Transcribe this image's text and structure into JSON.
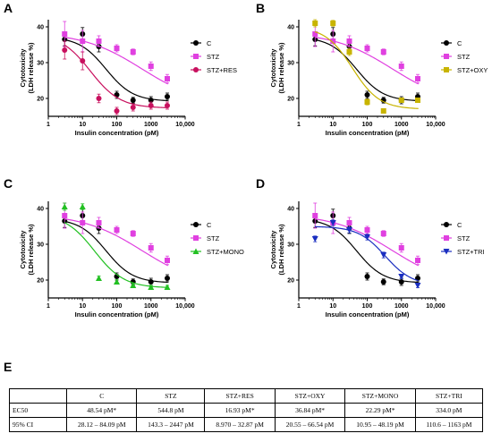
{
  "panels": [
    {
      "letter": "A",
      "chart_data": {
        "type": "line",
        "xscale": "log",
        "xlim": [
          1,
          10000
        ],
        "ylim": [
          15,
          42
        ],
        "xlabel": "Insulin concentration (pM)",
        "ylabel": "Cytotoxicity\n(LDH release %)",
        "xticks": [
          {
            "v": 1,
            "label": "1"
          },
          {
            "v": 10,
            "label": "10"
          },
          {
            "v": 100,
            "label": "100"
          },
          {
            "v": 1000,
            "label": "1000"
          },
          {
            "v": 10000,
            "label": "10,000"
          }
        ],
        "yticks": [
          20,
          30,
          40
        ],
        "legend_position": "right",
        "series": [
          {
            "name": "C",
            "color": "#000000",
            "marker": "circle",
            "x": [
              3,
              10,
              30,
              100,
              300,
              1000,
              3000
            ],
            "y": [
              36.5,
              38,
              34.5,
              21,
              19.5,
              19.5,
              20.5
            ],
            "err": [
              1.8,
              1.8,
              1.5,
              1.0,
              0.8,
              1.0,
              1.0
            ],
            "fit": {
              "bottom": 19.2,
              "top": 37.2,
              "ec50": 48.54,
              "hill": 1.1
            }
          },
          {
            "name": "STZ",
            "color": "#e040e0",
            "marker": "square",
            "x": [
              3,
              10,
              30,
              100,
              300,
              1000,
              3000
            ],
            "y": [
              38,
              36,
              36,
              34,
              33,
              29,
              25.5
            ],
            "err": [
              3.5,
              3,
              1.5,
              1.0,
              0.8,
              1.2,
              1.2
            ],
            "fit": {
              "bottom": 18,
              "top": 38.5,
              "ec50": 544.8,
              "hill": 0.5
            }
          },
          {
            "name": "STZ+RES",
            "color": "#c8105e",
            "marker": "circle",
            "x": [
              3,
              10,
              30,
              100,
              300,
              1000,
              3000
            ],
            "y": [
              33.5,
              30.5,
              20,
              16.5,
              17.5,
              18,
              18
            ],
            "err": [
              2.5,
              2.5,
              1.2,
              1.0,
              1.0,
              1.0,
              1.0
            ],
            "fit": {
              "bottom": 17.3,
              "top": 38,
              "ec50": 16.93,
              "hill": 1.0
            }
          }
        ]
      }
    },
    {
      "letter": "B",
      "chart_data": {
        "type": "line",
        "xscale": "log",
        "xlim": [
          1,
          10000
        ],
        "ylim": [
          15,
          42
        ],
        "xlabel": "Insulin concentration (pM)",
        "ylabel": "Cytotoxicity\n(LDH release %)",
        "xticks": [
          {
            "v": 1,
            "label": "1"
          },
          {
            "v": 10,
            "label": "10"
          },
          {
            "v": 100,
            "label": "100"
          },
          {
            "v": 1000,
            "label": "1000"
          },
          {
            "v": 10000,
            "label": "10,000"
          }
        ],
        "yticks": [
          20,
          30,
          40
        ],
        "legend_position": "right",
        "series": [
          {
            "name": "C",
            "color": "#000000",
            "marker": "circle",
            "x": [
              3,
              10,
              30,
              100,
              300,
              1000,
              3000
            ],
            "y": [
              36.5,
              38,
              34.5,
              21,
              19.5,
              19.5,
              20.5
            ],
            "err": [
              1.8,
              1.8,
              1.5,
              1.0,
              0.8,
              1.0,
              1.0
            ],
            "fit": {
              "bottom": 19.2,
              "top": 37.2,
              "ec50": 48.54,
              "hill": 1.1
            }
          },
          {
            "name": "STZ",
            "color": "#e040e0",
            "marker": "square",
            "x": [
              3,
              10,
              30,
              100,
              300,
              1000,
              3000
            ],
            "y": [
              38,
              36,
              36,
              34,
              33,
              29,
              25.5
            ],
            "err": [
              3.5,
              3,
              1.5,
              1.0,
              0.8,
              1.2,
              1.2
            ],
            "fit": {
              "bottom": 18,
              "top": 38.5,
              "ec50": 544.8,
              "hill": 0.5
            }
          },
          {
            "name": "STZ+OXY",
            "color": "#c8b400",
            "marker": "square",
            "x": [
              3,
              10,
              30,
              100,
              300,
              1000,
              3000
            ],
            "y": [
              41,
              41,
              33,
              19,
              16.5,
              19.5,
              19.5
            ],
            "err": [
              1.0,
              0.8,
              1.0,
              0.8,
              0.6,
              0.6,
              0.6
            ],
            "fit": {
              "bottom": 17,
              "top": 40,
              "ec50": 36.84,
              "hill": 1.1
            }
          }
        ]
      }
    },
    {
      "letter": "C",
      "chart_data": {
        "type": "line",
        "xscale": "log",
        "xlim": [
          1,
          10000
        ],
        "ylim": [
          15,
          42
        ],
        "xlabel": "Insulin concentration (pM)",
        "ylabel": "Cytotoxicity\n(LDH release %)",
        "xticks": [
          {
            "v": 1,
            "label": "1"
          },
          {
            "v": 10,
            "label": "10"
          },
          {
            "v": 100,
            "label": "100"
          },
          {
            "v": 1000,
            "label": "1000"
          },
          {
            "v": 10000,
            "label": "10,000"
          }
        ],
        "yticks": [
          20,
          30,
          40
        ],
        "legend_position": "right",
        "series": [
          {
            "name": "C",
            "color": "#000000",
            "marker": "circle",
            "x": [
              3,
              10,
              30,
              100,
              300,
              1000,
              3000
            ],
            "y": [
              36.5,
              38,
              34.5,
              21,
              19.5,
              19.5,
              20.5
            ],
            "err": [
              1.8,
              1.8,
              1.5,
              1.0,
              0.8,
              1.0,
              1.0
            ],
            "fit": {
              "bottom": 19.2,
              "top": 37.2,
              "ec50": 48.54,
              "hill": 1.1
            }
          },
          {
            "name": "STZ",
            "color": "#e040e0",
            "marker": "square",
            "x": [
              3,
              10,
              30,
              100,
              300,
              1000,
              3000
            ],
            "y": [
              38,
              36,
              36,
              34,
              33,
              29,
              25.5
            ],
            "err": [
              3.5,
              3,
              1.5,
              1.0,
              0.8,
              1.2,
              1.2
            ],
            "fit": {
              "bottom": 18,
              "top": 38.5,
              "ec50": 544.8,
              "hill": 0.5
            }
          },
          {
            "name": "STZ+MONO",
            "color": "#22c022",
            "marker": "triangle",
            "x": [
              3,
              10,
              30,
              100,
              300,
              1000,
              3000
            ],
            "y": [
              40.5,
              40.5,
              20.5,
              19.5,
              18.5,
              18,
              18
            ],
            "err": [
              1.0,
              0.8,
              0.6,
              0.6,
              0.5,
              0.5,
              0.5
            ],
            "fit": {
              "bottom": 17.8,
              "top": 38.5,
              "ec50": 22.29,
              "hill": 1.0
            }
          }
        ]
      }
    },
    {
      "letter": "D",
      "chart_data": {
        "type": "line",
        "xscale": "log",
        "xlim": [
          1,
          10000
        ],
        "ylim": [
          15,
          42
        ],
        "xlabel": "Insulin concentration (pM)",
        "ylabel": "Cytotoxicity\n(LDH release %)",
        "xticks": [
          {
            "v": 1,
            "label": "1"
          },
          {
            "v": 10,
            "label": "10"
          },
          {
            "v": 100,
            "label": "100"
          },
          {
            "v": 1000,
            "label": "1000"
          },
          {
            "v": 10000,
            "label": "10,000"
          }
        ],
        "yticks": [
          20,
          30,
          40
        ],
        "legend_position": "right",
        "series": [
          {
            "name": "C",
            "color": "#000000",
            "marker": "circle",
            "x": [
              3,
              10,
              30,
              100,
              300,
              1000,
              3000
            ],
            "y": [
              36.5,
              38,
              34.5,
              21,
              19.5,
              19.5,
              20.5
            ],
            "err": [
              1.8,
              1.8,
              1.5,
              1.0,
              0.8,
              1.0,
              1.0
            ],
            "fit": {
              "bottom": 19.2,
              "top": 37.2,
              "ec50": 48.54,
              "hill": 1.1
            }
          },
          {
            "name": "STZ",
            "color": "#e040e0",
            "marker": "square",
            "x": [
              3,
              10,
              30,
              100,
              300,
              1000,
              3000
            ],
            "y": [
              38,
              36,
              36,
              34,
              33,
              29,
              25.5
            ],
            "err": [
              3.5,
              3,
              1.5,
              1.0,
              0.8,
              1.2,
              1.2
            ],
            "fit": {
              "bottom": 18,
              "top": 38.5,
              "ec50": 544.8,
              "hill": 0.5
            }
          },
          {
            "name": "STZ+TRI",
            "color": "#1a2ec0",
            "marker": "triangle-down",
            "x": [
              3,
              10,
              30,
              100,
              300,
              1000,
              3000
            ],
            "y": [
              31.5,
              36,
              34,
              32,
              27,
              21,
              18.5
            ],
            "err": [
              0.8,
              0.8,
              0.8,
              0.8,
              0.8,
              0.6,
              0.6
            ],
            "fit": {
              "bottom": 18.5,
              "top": 35,
              "ec50": 334.0,
              "hill": 1.1
            }
          }
        ]
      }
    }
  ],
  "table": {
    "letter": "E",
    "headers": [
      "",
      "C",
      "STZ",
      "STZ+RES",
      "STZ+OXY",
      "STZ+MONO",
      "STZ+TRI"
    ],
    "rows": [
      [
        "EC50",
        "48.54 pM*",
        "544.8 pM",
        "16.93 pM*",
        "36.84 pM*",
        "22.29 pM*",
        "334.0 pM"
      ],
      [
        "95% CI",
        "28.12 – 84.09 pM",
        "143.3 – 2447 pM",
        "8.970 – 32.87 pM",
        "20.55 – 66.54 pM",
        "10.95 – 48.19 pM",
        "110.6 – 1163 pM"
      ]
    ]
  }
}
